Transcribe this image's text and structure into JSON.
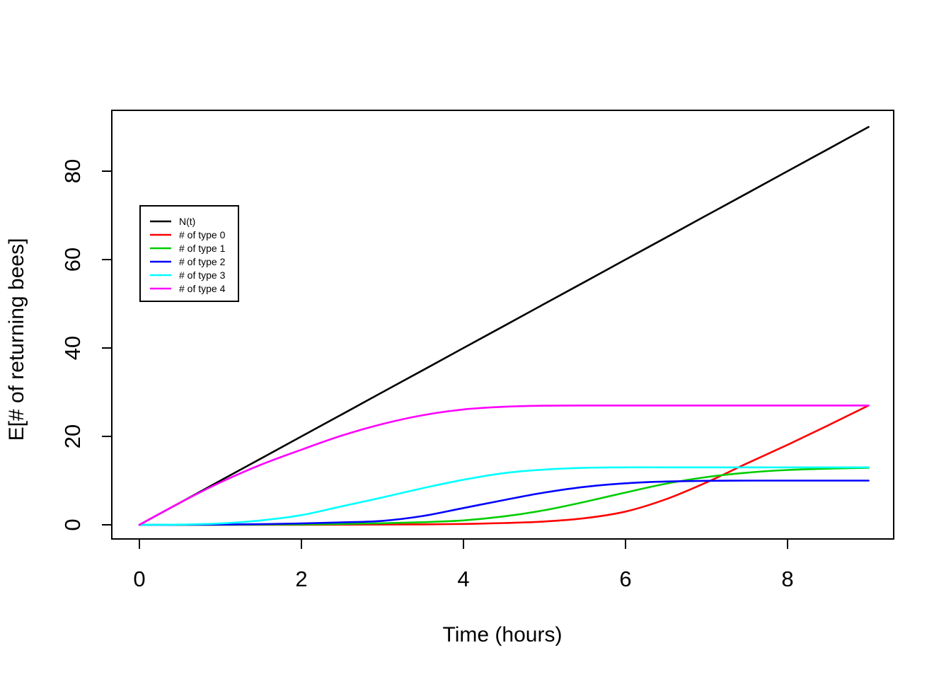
{
  "chart_data": {
    "type": "line",
    "title": "",
    "xlabel": "Time (hours)",
    "ylabel": "E[# of returning bees]",
    "xlim": [
      0,
      9
    ],
    "ylim": [
      0,
      90
    ],
    "xticks": [
      0,
      2,
      4,
      6,
      8
    ],
    "yticks": [
      0,
      20,
      40,
      60,
      80
    ],
    "grid": false,
    "legend_position": "upper-left-inside",
    "axis_color": "#000000",
    "background_color": "#ffffff",
    "x": [
      0,
      0.5,
      1,
      1.5,
      2,
      2.5,
      3,
      3.5,
      4,
      4.5,
      5,
      5.5,
      6,
      6.5,
      7,
      7.5,
      8,
      8.5,
      9
    ],
    "series": [
      {
        "name": "N(t)",
        "color": "#000000",
        "values": [
          0,
          5,
          10,
          15,
          20,
          25,
          30,
          35,
          40,
          45,
          50,
          55,
          60,
          65,
          70,
          75,
          80,
          85,
          90
        ]
      },
      {
        "name": "# of type 0",
        "color": "#FF0000",
        "values": [
          0,
          0,
          0,
          0,
          0.02,
          0.04,
          0.06,
          0.1,
          0.2,
          0.4,
          0.75,
          1.5,
          3.0,
          5.8,
          9.6,
          13.9,
          18.1,
          22.5,
          27.0
        ]
      },
      {
        "name": "# of type 1",
        "color": "#00CD00",
        "values": [
          0,
          0,
          0,
          0.05,
          0.1,
          0.2,
          0.35,
          0.6,
          1.0,
          1.9,
          3.3,
          5.2,
          7.3,
          9.3,
          10.8,
          11.8,
          12.4,
          12.7,
          12.9
        ]
      },
      {
        "name": "# of type 2",
        "color": "#0000FF",
        "values": [
          0,
          0,
          0.05,
          0.15,
          0.3,
          0.55,
          0.9,
          2.0,
          3.8,
          5.6,
          7.3,
          8.6,
          9.4,
          9.8,
          9.95,
          10,
          10,
          10,
          10
        ]
      },
      {
        "name": "# of type 3",
        "color": "#00FFFF",
        "values": [
          0,
          0.05,
          0.3,
          1.0,
          2.2,
          4.2,
          6.2,
          8.3,
          10.2,
          11.7,
          12.5,
          12.9,
          13,
          13,
          13,
          13,
          13,
          13,
          13
        ]
      },
      {
        "name": "# of type 4",
        "color": "#FF00FF",
        "values": [
          0,
          5.0,
          9.6,
          13.6,
          17.0,
          20.2,
          22.8,
          24.8,
          26.1,
          26.7,
          26.95,
          27,
          27,
          27,
          27,
          27,
          27,
          27,
          27
        ]
      }
    ]
  }
}
